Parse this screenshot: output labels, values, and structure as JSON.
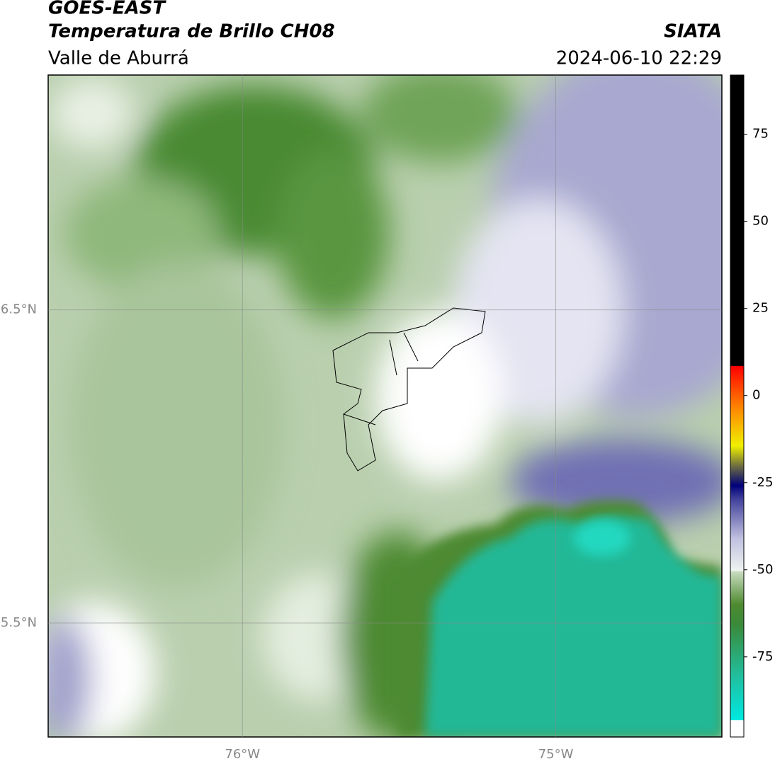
{
  "header": {
    "title": "GOES-EAST",
    "subtitle": "Temperatura de Brillo CH08",
    "region": "Valle de Aburrá",
    "source": "SIATA",
    "datetime": "2024-06-10 22:29"
  },
  "map": {
    "lon_range": [
      -76.62,
      -74.47
    ],
    "lat_range": [
      5.136,
      7.25
    ],
    "lat_ticks": [
      {
        "value": 6.5,
        "label": "6.5°N"
      },
      {
        "value": 5.5,
        "label": "5.5°N"
      }
    ],
    "lon_ticks": [
      {
        "value": -76,
        "label": "76°W"
      },
      {
        "value": -75,
        "label": "75°W"
      }
    ]
  },
  "colorbar": {
    "range": [
      -98,
      92
    ],
    "ticks": [
      75,
      50,
      25,
      0,
      -25,
      -50,
      -75
    ]
  }
}
